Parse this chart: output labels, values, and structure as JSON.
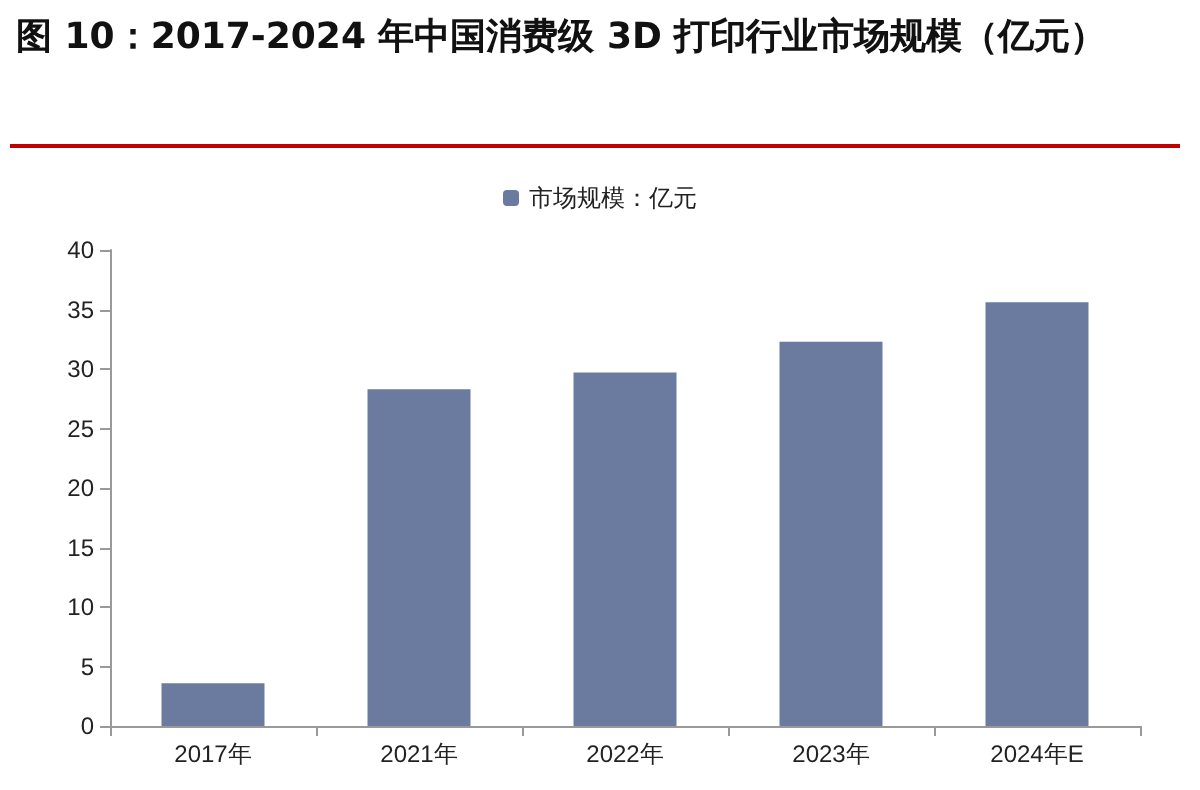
{
  "chart_data": {
    "type": "bar",
    "title": "图 10：2017-2024 年中国消费级 3D 打印行业市场规模（亿元）",
    "categories": [
      "2017年",
      "2021年",
      "2022年",
      "2023年",
      "2024年E"
    ],
    "series": [
      {
        "name": "市场规模：亿元",
        "color": "#6b7a9f",
        "values": [
          3.6,
          28.3,
          29.7,
          32.3,
          35.6
        ]
      }
    ],
    "ylim": [
      0,
      40
    ],
    "yticks": [
      0,
      5,
      10,
      15,
      20,
      25,
      30,
      35,
      40
    ],
    "grid": false,
    "legend": "top"
  }
}
